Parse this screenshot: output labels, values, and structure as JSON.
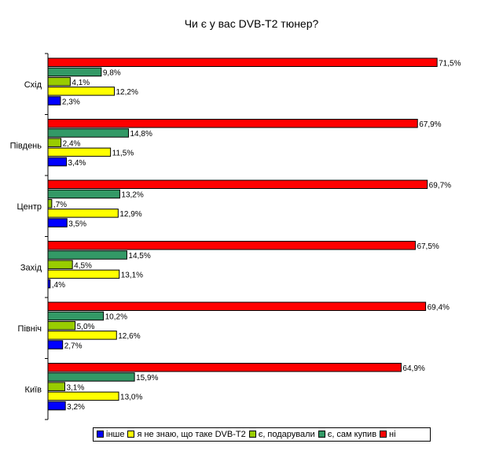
{
  "chart_data": {
    "type": "bar",
    "orientation": "horizontal",
    "title": "Чи є у вас DVB-T2 тюнер?",
    "categories": [
      "Схід",
      "Південь",
      "Центр",
      "Захід",
      "Північ",
      "Київ"
    ],
    "series": [
      {
        "name": "ні",
        "color": "#ff0000",
        "values": [
          71.5,
          67.9,
          69.7,
          67.5,
          69.4,
          64.9
        ],
        "labels": [
          "71,5%",
          "67,9%",
          "69,7%",
          "67,5%",
          "69,4%",
          "64,9%"
        ]
      },
      {
        "name": "є, сам купив",
        "color": "#339966",
        "values": [
          9.8,
          14.8,
          13.2,
          14.5,
          10.2,
          15.9
        ],
        "labels": [
          "9,8%",
          "14,8%",
          "13,2%",
          "14,5%",
          "10,2%",
          "15,9%"
        ]
      },
      {
        "name": "є, подарували",
        "color": "#99cc00",
        "values": [
          4.1,
          2.4,
          0.7,
          4.5,
          5.0,
          3.1
        ],
        "labels": [
          "4,1%",
          "2,4%",
          ",7%",
          "4,5%",
          "5,0%",
          "3,1%"
        ]
      },
      {
        "name": "я не знаю, що таке DVB-T2",
        "color": "#ffff00",
        "values": [
          12.2,
          11.5,
          12.9,
          13.1,
          12.6,
          13.0
        ],
        "labels": [
          "12,2%",
          "11,5%",
          "12,9%",
          "13,1%",
          "12,6%",
          "13,0%"
        ]
      },
      {
        "name": "інше",
        "color": "#0000ff",
        "values": [
          2.3,
          3.4,
          3.5,
          0.4,
          2.7,
          3.2
        ],
        "labels": [
          "2,3%",
          "3,4%",
          "3,5%",
          ",4%",
          "2,7%",
          "3,2%"
        ]
      }
    ],
    "legend": {
      "position": "bottom",
      "order": [
        "інше",
        "я не знаю, що таке DVB-T2",
        "є, подарували",
        "є, сам купив",
        "ні"
      ]
    },
    "xlim": [
      0,
      80
    ],
    "grid": false
  }
}
